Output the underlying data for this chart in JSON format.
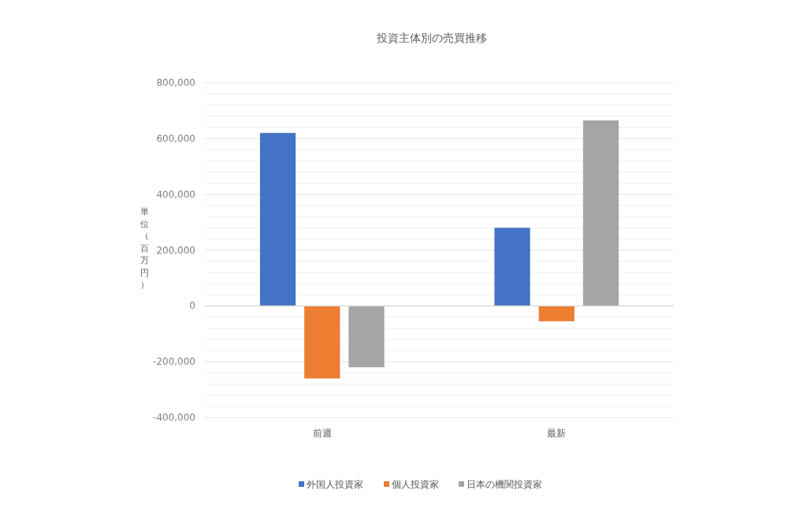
{
  "chart_data": {
    "type": "bar",
    "title": "投資主体別の売買推移",
    "ylabel": "単位（百万円）",
    "categories": [
      "前週",
      "最新"
    ],
    "series": [
      {
        "name": "外国人投資家",
        "color": "#4472c4",
        "values": [
          620000,
          280000
        ]
      },
      {
        "name": "個人投資家",
        "color": "#ed7d31",
        "values": [
          -260000,
          -55000
        ]
      },
      {
        "name": "日本の機関投資家",
        "color": "#a5a5a5",
        "values": [
          -220000,
          665000
        ]
      }
    ],
    "ylim": [
      -400000,
      800000
    ],
    "yticks": [
      {
        "value": -400000,
        "label": "-400,000"
      },
      {
        "value": -360000,
        "label": null
      },
      {
        "value": -320000,
        "label": null
      },
      {
        "value": -280000,
        "label": null
      },
      {
        "value": -240000,
        "label": null
      },
      {
        "value": -200000,
        "label": "-200,000"
      },
      {
        "value": -160000,
        "label": null
      },
      {
        "value": -120000,
        "label": null
      },
      {
        "value": -80000,
        "label": null
      },
      {
        "value": -40000,
        "label": null
      },
      {
        "value": 0,
        "label": "0"
      },
      {
        "value": 40000,
        "label": null
      },
      {
        "value": 80000,
        "label": null
      },
      {
        "value": 120000,
        "label": null
      },
      {
        "value": 160000,
        "label": null
      },
      {
        "value": 200000,
        "label": "200,000"
      },
      {
        "value": 240000,
        "label": null
      },
      {
        "value": 280000,
        "label": null
      },
      {
        "value": 320000,
        "label": null
      },
      {
        "value": 360000,
        "label": null
      },
      {
        "value": 400000,
        "label": "400,000"
      },
      {
        "value": 440000,
        "label": null
      },
      {
        "value": 480000,
        "label": null
      },
      {
        "value": 520000,
        "label": null
      },
      {
        "value": 560000,
        "label": null
      },
      {
        "value": 600000,
        "label": "600,000"
      },
      {
        "value": 640000,
        "label": null
      },
      {
        "value": 680000,
        "label": null
      },
      {
        "value": 720000,
        "label": null
      },
      {
        "value": 760000,
        "label": null
      },
      {
        "value": 800000,
        "label": "800,000"
      }
    ],
    "grid": "y",
    "legend": "bottom"
  }
}
